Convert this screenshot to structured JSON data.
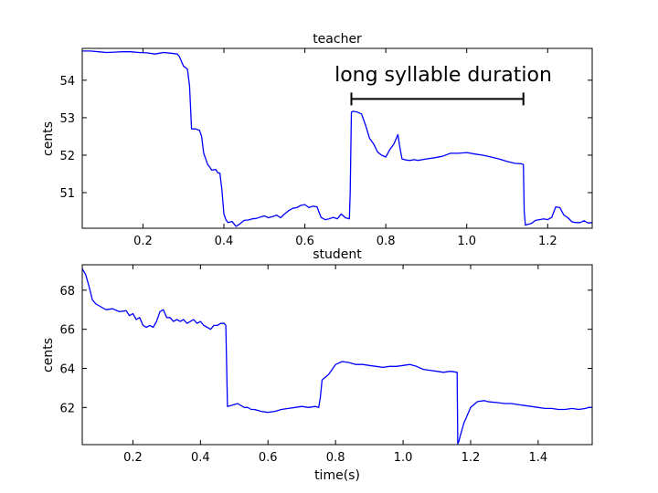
{
  "chart_data": [
    {
      "type": "line",
      "title": "teacher",
      "xlabel": "",
      "ylabel": "cents",
      "xlim": [
        0.05,
        1.31
      ],
      "ylim": [
        50.05,
        54.85
      ],
      "xticks": [
        0.2,
        0.4,
        0.6,
        0.8,
        1.0,
        1.2
      ],
      "xtick_labels": [
        "0.2",
        "0.4",
        "0.6",
        "0.8",
        "1.0",
        "1.2"
      ],
      "yticks": [
        51,
        52,
        53,
        54
      ],
      "ytick_labels": [
        "51",
        "52",
        "53",
        "54"
      ],
      "grid": false,
      "color": "#0000ff",
      "annotation": {
        "text": "long syllable duration",
        "x_start": 0.715,
        "x_end": 1.14,
        "y": 53.5
      },
      "series": [
        {
          "x": [
            0.05,
            0.07,
            0.09,
            0.11,
            0.13,
            0.15,
            0.17,
            0.19,
            0.21,
            0.23,
            0.25,
            0.27,
            0.285,
            0.29,
            0.3,
            0.31,
            0.315,
            0.32,
            0.33,
            0.34,
            0.345,
            0.35,
            0.36,
            0.365,
            0.37,
            0.38,
            0.385,
            0.39,
            0.395,
            0.4,
            0.405,
            0.41,
            0.42,
            0.43,
            0.44,
            0.45,
            0.46,
            0.47,
            0.48,
            0.49,
            0.5,
            0.51,
            0.52,
            0.53,
            0.54,
            0.55,
            0.56,
            0.57,
            0.58,
            0.59,
            0.6,
            0.61,
            0.62,
            0.63,
            0.64,
            0.65,
            0.66,
            0.67,
            0.68,
            0.69,
            0.7,
            0.71,
            0.712,
            0.715,
            0.72,
            0.73,
            0.74,
            0.75,
            0.76,
            0.77,
            0.78,
            0.79,
            0.8,
            0.81,
            0.82,
            0.83,
            0.835,
            0.84,
            0.85,
            0.86,
            0.87,
            0.88,
            0.9,
            0.92,
            0.94,
            0.96,
            0.98,
            1.0,
            1.02,
            1.04,
            1.06,
            1.08,
            1.1,
            1.12,
            1.135,
            1.14,
            1.142,
            1.145,
            1.15,
            1.16,
            1.17,
            1.18,
            1.19,
            1.2,
            1.21,
            1.22,
            1.23,
            1.24,
            1.25,
            1.26,
            1.27,
            1.28,
            1.29,
            1.3,
            1.31
          ],
          "values": [
            54.78,
            54.78,
            54.76,
            54.74,
            54.75,
            54.76,
            54.76,
            54.74,
            54.73,
            54.7,
            54.74,
            54.72,
            54.7,
            54.63,
            54.38,
            54.3,
            53.85,
            52.7,
            52.7,
            52.66,
            52.5,
            52.05,
            51.75,
            51.68,
            51.6,
            51.62,
            51.53,
            51.52,
            51.08,
            50.43,
            50.28,
            50.2,
            50.23,
            50.1,
            50.17,
            50.26,
            50.27,
            50.3,
            50.31,
            50.35,
            50.38,
            50.33,
            50.36,
            50.4,
            50.33,
            50.43,
            50.52,
            50.58,
            50.6,
            50.66,
            50.68,
            50.6,
            50.64,
            50.62,
            50.34,
            50.28,
            50.3,
            50.34,
            50.3,
            50.43,
            50.33,
            50.3,
            51.0,
            53.15,
            53.17,
            53.15,
            53.1,
            52.8,
            52.45,
            52.3,
            52.08,
            52.0,
            51.95,
            52.15,
            52.3,
            52.55,
            52.2,
            51.9,
            51.87,
            51.86,
            51.88,
            51.86,
            51.9,
            51.93,
            51.97,
            52.05,
            52.05,
            52.07,
            52.03,
            52.0,
            51.95,
            51.9,
            51.83,
            51.78,
            51.77,
            51.75,
            50.5,
            50.13,
            50.15,
            50.18,
            50.26,
            50.28,
            50.3,
            50.28,
            50.34,
            50.62,
            50.6,
            50.4,
            50.33,
            50.22,
            50.2,
            50.2,
            50.25,
            50.19,
            50.2
          ]
        }
      ]
    },
    {
      "type": "line",
      "title": "student",
      "xlabel": "time(s)",
      "ylabel": "cents",
      "xlim": [
        0.05,
        1.56
      ],
      "ylim": [
        60.1,
        69.3
      ],
      "xticks": [
        0.2,
        0.4,
        0.6,
        0.8,
        1.0,
        1.2,
        1.4
      ],
      "xtick_labels": [
        "0.2",
        "0.4",
        "0.6",
        "0.8",
        "1.0",
        "1.2",
        "1.4"
      ],
      "yticks": [
        62,
        64,
        66,
        68
      ],
      "ytick_labels": [
        "62",
        "64",
        "66",
        "68"
      ],
      "grid": false,
      "color": "#0000ff",
      "series": [
        {
          "x": [
            0.05,
            0.06,
            0.07,
            0.08,
            0.09,
            0.1,
            0.12,
            0.14,
            0.16,
            0.18,
            0.19,
            0.2,
            0.21,
            0.22,
            0.23,
            0.24,
            0.25,
            0.26,
            0.27,
            0.28,
            0.29,
            0.3,
            0.31,
            0.32,
            0.33,
            0.34,
            0.35,
            0.36,
            0.37,
            0.38,
            0.39,
            0.4,
            0.41,
            0.42,
            0.43,
            0.44,
            0.45,
            0.46,
            0.47,
            0.475,
            0.48,
            0.49,
            0.5,
            0.51,
            0.52,
            0.53,
            0.54,
            0.55,
            0.56,
            0.58,
            0.6,
            0.62,
            0.64,
            0.66,
            0.68,
            0.7,
            0.72,
            0.74,
            0.75,
            0.755,
            0.76,
            0.78,
            0.8,
            0.82,
            0.84,
            0.86,
            0.88,
            0.9,
            0.92,
            0.94,
            0.96,
            0.98,
            1.0,
            1.02,
            1.04,
            1.06,
            1.08,
            1.1,
            1.12,
            1.14,
            1.16,
            1.162,
            1.165,
            1.17,
            1.18,
            1.19,
            1.2,
            1.22,
            1.24,
            1.25,
            1.26,
            1.28,
            1.3,
            1.32,
            1.34,
            1.36,
            1.38,
            1.4,
            1.42,
            1.44,
            1.46,
            1.48,
            1.5,
            1.52,
            1.54,
            1.55,
            1.56
          ],
          "values": [
            69.1,
            68.8,
            68.2,
            67.5,
            67.3,
            67.2,
            67.0,
            67.05,
            66.9,
            66.95,
            66.7,
            66.8,
            66.5,
            66.6,
            66.2,
            66.1,
            66.2,
            66.1,
            66.4,
            66.9,
            67.0,
            66.6,
            66.6,
            66.4,
            66.5,
            66.4,
            66.5,
            66.3,
            66.4,
            66.5,
            66.3,
            66.4,
            66.2,
            66.1,
            66.0,
            66.2,
            66.2,
            66.3,
            66.3,
            66.2,
            62.05,
            62.1,
            62.15,
            62.2,
            62.1,
            62.0,
            62.0,
            61.9,
            61.9,
            61.8,
            61.75,
            61.8,
            61.9,
            61.95,
            62.0,
            62.05,
            62.0,
            62.05,
            62.0,
            62.5,
            63.4,
            63.7,
            64.2,
            64.35,
            64.3,
            64.2,
            64.2,
            64.15,
            64.1,
            64.05,
            64.1,
            64.1,
            64.15,
            64.2,
            64.1,
            63.95,
            63.9,
            63.85,
            63.8,
            63.85,
            63.8,
            60.15,
            60.25,
            60.6,
            61.2,
            61.6,
            62.0,
            62.3,
            62.35,
            62.3,
            62.28,
            62.25,
            62.2,
            62.2,
            62.15,
            62.1,
            62.05,
            62.0,
            61.95,
            61.95,
            61.9,
            61.9,
            61.95,
            61.9,
            61.95,
            62.0,
            62.0
          ]
        }
      ]
    }
  ]
}
